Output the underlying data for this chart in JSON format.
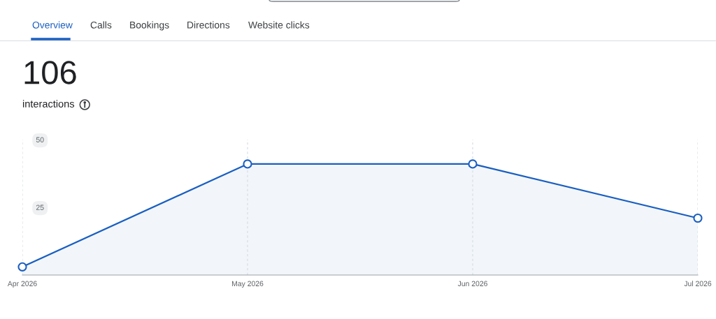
{
  "chart_data": {
    "type": "area",
    "title": "106",
    "subtitle": "interactions",
    "annotations": [
      "Overview",
      "Calls",
      "Bookings",
      "Directions",
      "Website clicks"
    ],
    "categories": [
      "Apr 2026",
      "May 2026",
      "Jun 2026",
      "Jul 2026"
    ],
    "series": [
      {
        "color": "#1a5fc0",
        "values": [
          3,
          41,
          41,
          21
        ]
      }
    ],
    "ylim": [
      0,
      50
    ],
    "yticks": [
      25,
      50
    ],
    "grid": "x",
    "marker": "circle",
    "line_style": "solid"
  }
}
